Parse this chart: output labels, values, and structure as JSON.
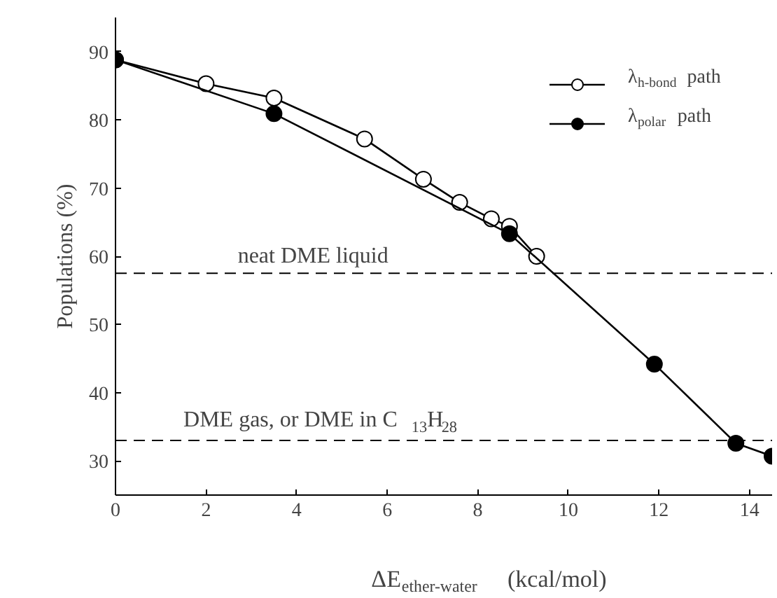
{
  "chart_data": {
    "type": "line",
    "xlabel": "ΔE$_{ether-water}$ (kcal/mol)",
    "ylabel": "Populations (%)",
    "xlim": [
      0,
      14.5
    ],
    "ylim": [
      25,
      95
    ],
    "xticks": [
      0,
      2,
      4,
      6,
      8,
      10,
      12,
      14
    ],
    "yticks": [
      30,
      40,
      50,
      60,
      70,
      80,
      90
    ],
    "grid": false,
    "legend": "top right",
    "line_style": "solid",
    "series": [
      {
        "name": "λ$_{h-bond}$ path",
        "color": "#000000",
        "marker": "circle",
        "x": [
          0,
          2,
          3.5,
          5.5,
          6.8,
          7.6,
          8.3,
          8.7,
          9.3
        ],
        "values": [
          88.8,
          85.3,
          83.2,
          77.2,
          71.3,
          67.9,
          65.5,
          64.4,
          60.0
        ]
      },
      {
        "name": "λ$_{polar}$ path",
        "color": "#000000",
        "marker": "circle",
        "x": [
          0,
          3.5,
          8.7,
          11.9,
          13.7,
          14.5
        ],
        "values": [
          88.8,
          80.9,
          63.3,
          44.2,
          32.6,
          30.7
        ]
      }
    ],
    "ref_lines": [
      {
        "axis": "y",
        "value": 57.5,
        "label": "neat DME liquid",
        "line_style": "dashed",
        "color": "#000000"
      },
      {
        "axis": "y",
        "value": 33,
        "label": "DME gas, or DME in C$_{13}$H$_{28}$",
        "line_style": "dashed",
        "color": "#000000"
      }
    ]
  }
}
